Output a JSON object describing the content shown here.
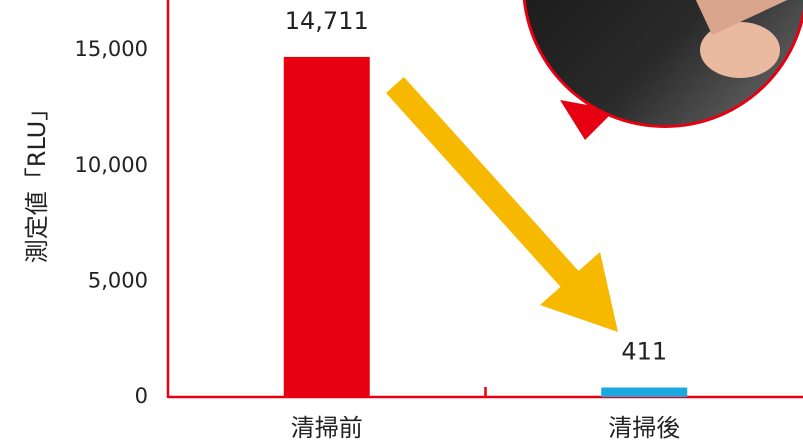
{
  "chart_data": {
    "type": "bar",
    "y_label": "測定値「RLU」",
    "categories": [
      "清掃前",
      "清掃後"
    ],
    "values": [
      14711,
      411
    ],
    "value_labels": [
      "14,711",
      "411"
    ],
    "colors": [
      "#e60012",
      "#1ba8e0"
    ],
    "axis_color": "#e60012",
    "ylim": [
      0,
      17000
    ],
    "yticks": [
      0,
      {
        "value": 5000,
        "label": "5,000"
      },
      {
        "value": 10000,
        "label": "10,000"
      },
      {
        "value": 15000,
        "label": "15,000"
      }
    ],
    "grid": false
  }
}
